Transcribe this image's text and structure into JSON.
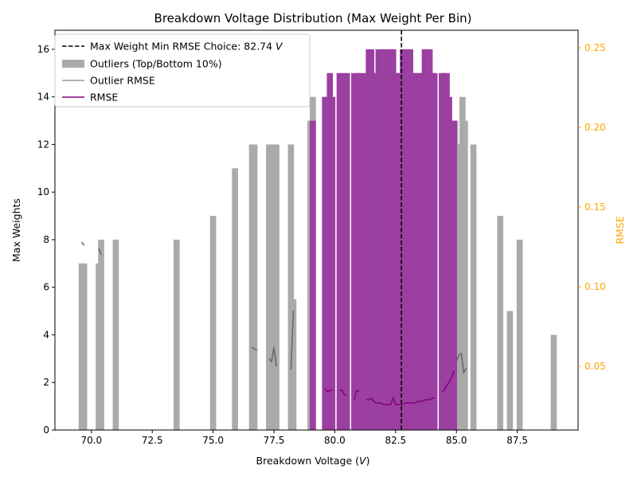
{
  "chart_data": {
    "type": "bar",
    "title": "Breakdown Voltage Distribution (Max Weight Per Bin)",
    "xlabel": "Breakdown Voltage (V)",
    "xlabel_prefix": "Breakdown Voltage (",
    "xlabel_var": "V",
    "xlabel_suffix": ")",
    "ylabel": "Max Weights",
    "y2label": "RMSE",
    "xlim": [
      68.5,
      90
    ],
    "ylim": [
      0,
      16.8
    ],
    "y2lim": [
      0.01,
      0.261
    ],
    "xticks": [
      70.0,
      72.5,
      75.0,
      77.5,
      80.0,
      82.5,
      85.0,
      87.5
    ],
    "xtick_labels": [
      "70.0",
      "72.5",
      "75.0",
      "77.5",
      "80.0",
      "82.5",
      "85.0",
      "87.5"
    ],
    "yticks": [
      0,
      2,
      4,
      6,
      8,
      10,
      12,
      14,
      16
    ],
    "ytick_labels": [
      "0",
      "2",
      "4",
      "6",
      "8",
      "10",
      "12",
      "14",
      "16"
    ],
    "y2ticks": [
      0.05,
      0.1,
      0.15,
      0.2,
      0.25
    ],
    "y2tick_labels": [
      "0.05",
      "0.10",
      "0.15",
      "0.20",
      "0.25"
    ],
    "grid": false,
    "legend_placement": "top-left",
    "colors": {
      "outlier": "#aaaaaa",
      "main": "#9b3fa0",
      "outlier_line": "#666666",
      "rmse_line": "#800080",
      "choice_line": "#000000",
      "y2_axis": "#ffa500"
    },
    "choice": {
      "value": 82.74,
      "label": "Max Weight Min RMSE Choice: 82.74 ",
      "label_unit": "V"
    },
    "legend": [
      {
        "label": "Max Weight Min RMSE Choice: 82.74 V",
        "kind": "dashed",
        "color": "#000000"
      },
      {
        "label": "Outliers (Top/Bottom 10%)",
        "kind": "patch",
        "color": "#aaaaaa"
      },
      {
        "label": "Outlier RMSE",
        "kind": "line",
        "color": "#999999"
      },
      {
        "label": "RMSE",
        "kind": "line",
        "color": "#800080"
      }
    ],
    "bar_width": 0.25,
    "outlier_bars": [
      [
        69.6,
        7
      ],
      [
        69.7,
        7
      ],
      [
        70.3,
        7
      ],
      [
        70.4,
        8
      ],
      [
        71.0,
        8
      ],
      [
        73.5,
        8
      ],
      [
        75.0,
        9
      ],
      [
        75.9,
        11
      ],
      [
        76.6,
        12
      ],
      [
        76.7,
        12
      ],
      [
        77.3,
        12
      ],
      [
        77.4,
        12
      ],
      [
        77.5,
        11
      ],
      [
        77.6,
        12
      ],
      [
        78.2,
        12
      ],
      [
        78.3,
        5.5
      ],
      [
        79.0,
        13
      ],
      [
        79.1,
        14
      ],
      [
        84.95,
        13
      ],
      [
        85.05,
        12
      ],
      [
        85.15,
        12
      ],
      [
        85.25,
        14
      ],
      [
        85.35,
        13
      ],
      [
        85.7,
        12
      ],
      [
        86.8,
        9
      ],
      [
        87.2,
        5
      ],
      [
        87.6,
        8
      ],
      [
        89.0,
        4
      ]
    ],
    "main_bars": [
      [
        79.1,
        13
      ],
      [
        79.6,
        14
      ],
      [
        79.7,
        14
      ],
      [
        79.8,
        15
      ],
      [
        79.9,
        14
      ],
      [
        80.2,
        15
      ],
      [
        80.3,
        15
      ],
      [
        80.4,
        14
      ],
      [
        80.5,
        15
      ],
      [
        80.8,
        15
      ],
      [
        80.9,
        15
      ],
      [
        81.0,
        15
      ],
      [
        81.1,
        15
      ],
      [
        81.3,
        15
      ],
      [
        81.4,
        16
      ],
      [
        81.5,
        16
      ],
      [
        81.6,
        15
      ],
      [
        81.7,
        15
      ],
      [
        81.8,
        16
      ],
      [
        81.9,
        16
      ],
      [
        82.0,
        16
      ],
      [
        82.1,
        16
      ],
      [
        82.2,
        16
      ],
      [
        82.3,
        16
      ],
      [
        82.4,
        16
      ],
      [
        82.5,
        15
      ],
      [
        82.6,
        15
      ],
      [
        82.7,
        15
      ],
      [
        82.8,
        16
      ],
      [
        82.9,
        16
      ],
      [
        83.0,
        16
      ],
      [
        83.1,
        16
      ],
      [
        83.2,
        15
      ],
      [
        83.3,
        15
      ],
      [
        83.4,
        15
      ],
      [
        83.5,
        15
      ],
      [
        83.6,
        15
      ],
      [
        83.7,
        16
      ],
      [
        83.8,
        16
      ],
      [
        83.9,
        16
      ],
      [
        84.0,
        15
      ],
      [
        84.1,
        15
      ],
      [
        84.4,
        15
      ],
      [
        84.5,
        15
      ],
      [
        84.6,
        15
      ],
      [
        84.7,
        14
      ],
      [
        84.8,
        13
      ],
      [
        84.9,
        13
      ]
    ],
    "outlier_rmse_segments": [
      [
        [
          69.6,
          0.128
        ],
        [
          69.7,
          0.126
        ]
      ],
      [
        [
          70.3,
          0.124
        ],
        [
          70.4,
          0.12
        ]
      ],
      [
        [
          76.6,
          0.062
        ],
        [
          76.8,
          0.06
        ]
      ],
      [
        [
          77.3,
          0.055
        ],
        [
          77.4,
          0.053
        ],
        [
          77.5,
          0.062
        ],
        [
          77.6,
          0.05
        ]
      ],
      [
        [
          78.2,
          0.048
        ],
        [
          78.3,
          0.085
        ]
      ],
      [
        [
          85.0,
          0.053
        ],
        [
          85.1,
          0.057
        ],
        [
          85.2,
          0.058
        ],
        [
          85.3,
          0.046
        ],
        [
          85.4,
          0.049
        ]
      ]
    ],
    "rmse_segments": [
      [
        [
          79.6,
          0.036
        ],
        [
          79.7,
          0.034
        ],
        [
          79.8,
          0.035
        ],
        [
          79.9,
          0.035
        ]
      ],
      [
        [
          80.2,
          0.035
        ],
        [
          80.3,
          0.035
        ],
        [
          80.4,
          0.032
        ],
        [
          80.5,
          0.032
        ]
      ],
      [
        [
          80.8,
          0.029
        ],
        [
          80.9,
          0.035
        ],
        [
          81.0,
          0.034
        ]
      ],
      [
        [
          81.3,
          0.029
        ],
        [
          81.4,
          0.029
        ],
        [
          81.5,
          0.03
        ],
        [
          81.6,
          0.028
        ],
        [
          81.7,
          0.027
        ],
        [
          81.8,
          0.027
        ],
        [
          81.9,
          0.027
        ],
        [
          82.0,
          0.026
        ],
        [
          82.1,
          0.026
        ],
        [
          82.2,
          0.026
        ],
        [
          82.3,
          0.026
        ],
        [
          82.4,
          0.03
        ],
        [
          82.5,
          0.026
        ],
        [
          82.6,
          0.026
        ],
        [
          82.7,
          0.026
        ],
        [
          82.8,
          0.026
        ],
        [
          82.9,
          0.027
        ],
        [
          83.0,
          0.027
        ],
        [
          83.1,
          0.027
        ],
        [
          83.2,
          0.027
        ],
        [
          83.3,
          0.027
        ],
        [
          83.4,
          0.028
        ],
        [
          83.5,
          0.028
        ],
        [
          83.6,
          0.028
        ],
        [
          83.7,
          0.029
        ],
        [
          83.8,
          0.029
        ],
        [
          83.9,
          0.029
        ],
        [
          84.0,
          0.03
        ],
        [
          84.1,
          0.03
        ]
      ],
      [
        [
          84.4,
          0.034
        ],
        [
          84.5,
          0.035
        ],
        [
          84.6,
          0.038
        ],
        [
          84.7,
          0.04
        ],
        [
          84.8,
          0.043
        ],
        [
          84.9,
          0.047
        ]
      ]
    ]
  }
}
